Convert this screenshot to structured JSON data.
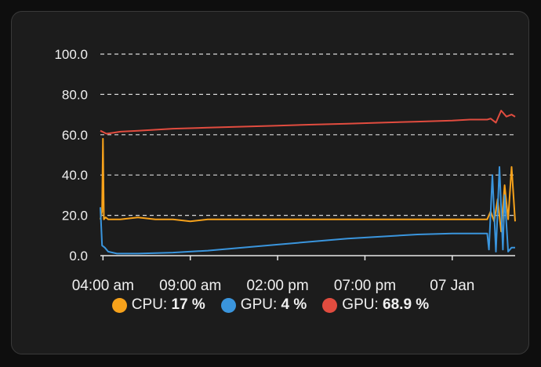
{
  "chart_data": {
    "type": "line",
    "title": "",
    "xlabel": "",
    "ylabel": "",
    "ylim": [
      0,
      100
    ],
    "yticks": [
      "0.0",
      "20.0",
      "40.0",
      "60.0",
      "80.0",
      "100.0"
    ],
    "yticks_values": [
      0,
      20,
      40,
      60,
      80,
      100
    ],
    "xticks": [
      "04:00 am",
      "09:00 am",
      "02:00 pm",
      "07:00 pm",
      "07 Jan"
    ],
    "xticks_hours": [
      4,
      9,
      14,
      19,
      24
    ],
    "xlim_hours": [
      3.85,
      27.6
    ],
    "grid": "horizontal dashed",
    "legend_position": "bottom",
    "series": [
      {
        "name": "CPU",
        "color": "#f7a21b",
        "x_hours": [
          3.85,
          3.95,
          4.0,
          4.05,
          4.15,
          4.3,
          5,
          6,
          7,
          8,
          9,
          10,
          12,
          14,
          16,
          18,
          20,
          22,
          24,
          25,
          26,
          26.2,
          26.4,
          26.6,
          26.8,
          27.0,
          27.2,
          27.4,
          27.6
        ],
        "values": [
          18,
          22,
          58,
          18,
          19,
          18,
          18,
          19,
          18,
          18,
          17,
          18,
          18,
          18,
          18,
          18,
          18,
          18,
          18,
          18,
          18,
          22,
          17,
          28,
          12,
          35,
          18,
          44,
          17
        ]
      },
      {
        "name": "GPU",
        "color": "#3a95dd",
        "x_hours": [
          3.85,
          3.95,
          4.1,
          4.3,
          4.8,
          6,
          8,
          10,
          12,
          14,
          16,
          18,
          20,
          22,
          24,
          25,
          26,
          26.1,
          26.3,
          26.5,
          26.7,
          26.9,
          27.0,
          27.2,
          27.4,
          27.6
        ],
        "values": [
          24,
          5,
          4,
          2,
          1,
          1,
          1.5,
          2.5,
          4,
          5.5,
          7,
          8.5,
          9.5,
          10.5,
          11,
          11,
          11,
          3,
          40,
          2,
          44,
          3,
          30,
          2,
          4,
          4
        ]
      },
      {
        "name": "GPU",
        "color": "#e14c3f",
        "x_hours": [
          3.85,
          4.2,
          4.6,
          5,
          6,
          8,
          10,
          12,
          14,
          16,
          18,
          20,
          22,
          24,
          25,
          26,
          26.2,
          26.5,
          26.8,
          27.1,
          27.4,
          27.6
        ],
        "values": [
          62,
          60.5,
          61,
          61.5,
          62,
          63,
          63.5,
          64,
          64.5,
          65,
          65.5,
          66,
          66.5,
          67,
          67.5,
          67.5,
          68,
          66,
          72,
          69,
          70,
          68.9
        ]
      }
    ]
  },
  "legend": [
    {
      "name": "CPU",
      "value": "17 %",
      "color": "#f7a21b"
    },
    {
      "name": "GPU",
      "value": "4 %",
      "color": "#3a95dd"
    },
    {
      "name": "GPU",
      "value": "68.9 %",
      "color": "#e14c3f"
    }
  ]
}
